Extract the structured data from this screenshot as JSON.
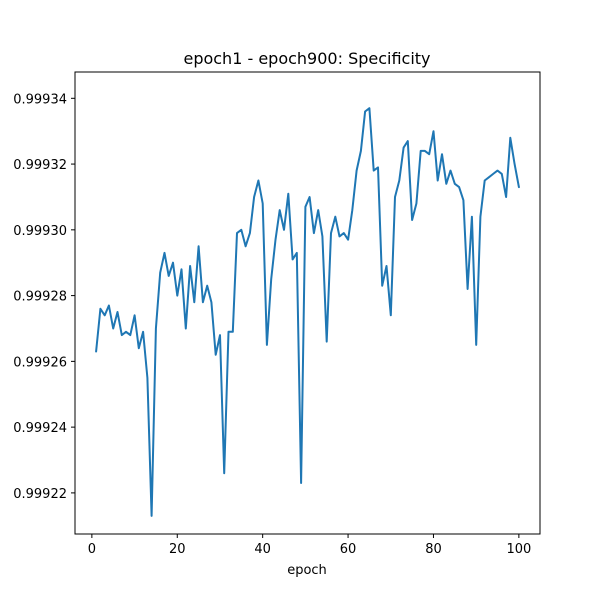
{
  "chart_data": {
    "type": "line",
    "title": "epoch1 - epoch900: Specificity",
    "xlabel": "epoch",
    "ylabel": "",
    "xlim": [
      -3.95,
      104.95
    ],
    "ylim": [
      0.9992075,
      0.999348
    ],
    "xticks": [
      0,
      20,
      40,
      60,
      80,
      100
    ],
    "xtick_labels": [
      "0",
      "20",
      "40",
      "60",
      "80",
      "100"
    ],
    "yticks": [
      0.99922,
      0.99924,
      0.99926,
      0.99928,
      0.9993,
      0.99932,
      0.99934
    ],
    "ytick_labels": [
      "0.99922",
      "0.99924",
      "0.99926",
      "0.99928",
      "0.99930",
      "0.99932",
      "0.99934"
    ],
    "grid": false,
    "line_color": "#1f77b4",
    "series": [
      {
        "x": [
          1,
          2,
          3,
          4,
          5,
          6,
          7,
          8,
          9,
          10,
          11,
          12,
          13,
          14,
          15,
          16,
          17,
          18,
          19,
          20,
          21,
          22,
          23,
          24,
          25,
          26,
          27,
          28,
          29,
          30,
          31,
          32,
          33,
          34,
          35,
          36,
          37,
          38,
          39,
          40,
          41,
          42,
          43,
          44,
          45,
          46,
          47,
          48,
          49,
          50,
          51,
          52,
          53,
          54,
          55,
          56,
          57,
          58,
          59,
          60,
          61,
          62,
          63,
          64,
          65,
          66,
          67,
          68,
          69,
          70,
          71,
          72,
          73,
          74,
          75,
          76,
          77,
          78,
          79,
          80,
          81,
          82,
          83,
          84,
          85,
          86,
          87,
          88,
          89,
          90,
          91,
          92,
          93,
          94,
          95,
          96,
          97,
          98,
          99,
          100
        ],
        "values": [
          0.999263,
          0.999276,
          0.999274,
          0.999277,
          0.99927,
          0.999275,
          0.999268,
          0.999269,
          0.999268,
          0.999274,
          0.999264,
          0.999269,
          0.999255,
          0.999213,
          0.99927,
          0.999287,
          0.999293,
          0.999286,
          0.99929,
          0.99928,
          0.999288,
          0.99927,
          0.999289,
          0.999278,
          0.999295,
          0.999278,
          0.999283,
          0.999278,
          0.999262,
          0.999268,
          0.999226,
          0.999269,
          0.999269,
          0.999299,
          0.9993,
          0.999295,
          0.999299,
          0.99931,
          0.999315,
          0.999308,
          0.999265,
          0.999285,
          0.999297,
          0.999306,
          0.9993,
          0.999311,
          0.999291,
          0.999293,
          0.999223,
          0.999307,
          0.99931,
          0.999299,
          0.999306,
          0.999298,
          0.999266,
          0.999299,
          0.999304,
          0.999298,
          0.999299,
          0.999297,
          0.999306,
          0.999318,
          0.999324,
          0.999336,
          0.999337,
          0.999318,
          0.999319,
          0.999283,
          0.999289,
          0.999274,
          0.99931,
          0.999315,
          0.999325,
          0.999327,
          0.999303,
          0.999308,
          0.999324,
          0.999324,
          0.999323,
          0.99933,
          0.999315,
          0.999323,
          0.999314,
          0.999318,
          0.999314,
          0.999313,
          0.999309,
          0.999282,
          0.999304,
          0.999265,
          0.999304,
          0.999315,
          0.999316,
          0.999317,
          0.999318,
          0.999317,
          0.99931,
          0.999328,
          0.99932,
          0.999313
        ]
      }
    ]
  }
}
